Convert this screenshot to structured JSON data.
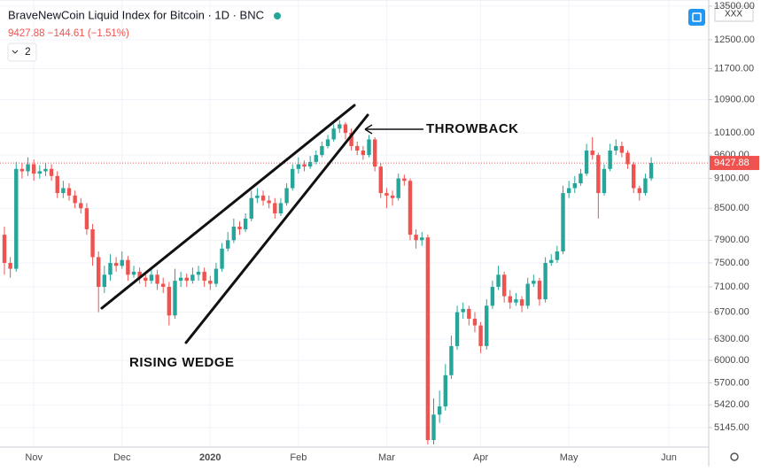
{
  "chart_data": {
    "type": "candlestick",
    "title": "BraveNewCoin Liquid Index for Bitcoin · 1D · BNC",
    "subtitle": "9427.88 −144.61 (−1.51%)",
    "annotations": [
      "THROWBACK",
      "RISING WEDGE"
    ],
    "log_scale": true,
    "grid": true,
    "up_color": "#26a69a",
    "down_color": "#ef5350",
    "ylim": [
      4920,
      13690
    ],
    "yticks": [
      {
        "value": 5145,
        "label": "5145.00"
      },
      {
        "value": 5420,
        "label": "5420.00"
      },
      {
        "value": 5700,
        "label": "5700.00"
      },
      {
        "value": 6000,
        "label": "6000.00"
      },
      {
        "value": 6300,
        "label": "6300.00"
      },
      {
        "value": 6700,
        "label": "6700.00"
      },
      {
        "value": 7100,
        "label": "7100.00"
      },
      {
        "value": 7500,
        "label": "7500.00"
      },
      {
        "value": 7900,
        "label": "7900.00"
      },
      {
        "value": 8500,
        "label": "8500.00"
      },
      {
        "value": 9100,
        "label": "9100.00"
      },
      {
        "value": 9600,
        "label": "9600.00"
      },
      {
        "value": 10100,
        "label": "10100.00"
      },
      {
        "value": 10900,
        "label": "10900.00"
      },
      {
        "value": 11700,
        "label": "11700.00"
      },
      {
        "value": 12500,
        "label": "12500.00"
      },
      {
        "value": 13500,
        "label": "13500.00"
      }
    ],
    "categories": [
      null,
      null,
      null,
      null,
      null,
      "Nov",
      null,
      null,
      null,
      null,
      null,
      null,
      null,
      null,
      null,
      null,
      null,
      null,
      null,
      null,
      "Dec",
      null,
      null,
      null,
      null,
      null,
      null,
      null,
      null,
      null,
      null,
      null,
      null,
      null,
      null,
      "2020",
      null,
      null,
      null,
      null,
      null,
      null,
      null,
      null,
      null,
      null,
      null,
      null,
      null,
      null,
      "Feb",
      null,
      null,
      null,
      null,
      null,
      null,
      null,
      null,
      null,
      null,
      null,
      null,
      null,
      null,
      "Mar",
      null,
      null,
      null,
      null,
      null,
      null,
      null,
      null,
      null,
      null,
      null,
      null,
      null,
      null,
      null,
      "Apr",
      null,
      null,
      null,
      null,
      null,
      null,
      null,
      null,
      null,
      null,
      null,
      null,
      null,
      null,
      "May",
      null,
      null,
      null,
      null,
      null,
      null,
      null,
      null,
      null,
      null,
      null,
      null,
      null,
      null,
      null,
      null,
      "Jun"
    ],
    "open": [
      8000,
      7500,
      7400,
      9300,
      9250,
      9400,
      9200,
      9250,
      9300,
      9150,
      8800,
      8900,
      8750,
      8600,
      8500,
      8100,
      7600,
      7100,
      7300,
      7500,
      7450,
      7550,
      7300,
      7350,
      7250,
      7200,
      7300,
      7150,
      7100,
      6650,
      7200,
      7250,
      7200,
      7300,
      7350,
      7200,
      7150,
      7400,
      7750,
      7900,
      8150,
      8100,
      8300,
      8700,
      8750,
      8650,
      8600,
      8400,
      8600,
      8900,
      9300,
      9400,
      9350,
      9450,
      9600,
      9800,
      9950,
      10200,
      10300,
      10100,
      9800,
      9700,
      9600,
      9950,
      9350,
      8800,
      8750,
      8700,
      9100,
      9050,
      8000,
      7900,
      7950,
      5000,
      5300,
      5400,
      5800,
      6200,
      6700,
      6750,
      6600,
      6500,
      6200,
      6800,
      7100,
      7300,
      6950,
      6850,
      6900,
      6800,
      7150,
      7200,
      6900,
      7500,
      7550,
      7700,
      8800,
      8900,
      9000,
      9200,
      9700,
      9600,
      8800,
      9300,
      9700,
      9800,
      9650,
      9400,
      8900,
      8800,
      9100,
      null,
      null,
      null
    ],
    "high": [
      8150,
      7600,
      9450,
      9420,
      9550,
      9500,
      9380,
      9420,
      9400,
      9250,
      9050,
      9000,
      8850,
      8700,
      8600,
      8200,
      7700,
      7450,
      7650,
      7600,
      7700,
      7620,
      7450,
      7420,
      7350,
      7400,
      7380,
      7250,
      7180,
      7400,
      7350,
      7320,
      7420,
      7450,
      7420,
      7280,
      7500,
      7850,
      8050,
      8300,
      8250,
      8400,
      8850,
      8900,
      8850,
      8750,
      8700,
      8700,
      9000,
      9400,
      9550,
      9480,
      9580,
      9700,
      9900,
      10050,
      10300,
      10400,
      10350,
      10200,
      9900,
      9800,
      10050,
      10000,
      9420,
      8900,
      8850,
      9200,
      9180,
      9100,
      8100,
      8050,
      8000,
      5500,
      5600,
      5950,
      6350,
      6800,
      6850,
      6800,
      6700,
      6550,
      6900,
      7200,
      7450,
      7350,
      7050,
      7000,
      6950,
      7250,
      7300,
      7250,
      7600,
      7650,
      7800,
      8950,
      9050,
      9150,
      9300,
      9850,
      10000,
      9650,
      9400,
      9850,
      9950,
      9900,
      9700,
      9450,
      8950,
      9200,
      9550,
      null,
      null,
      null
    ],
    "low": [
      7300,
      7250,
      7350,
      9100,
      9150,
      9050,
      9100,
      9150,
      9050,
      8700,
      8700,
      8650,
      8500,
      8400,
      8000,
      7450,
      6700,
      7000,
      7200,
      7350,
      7400,
      7200,
      7250,
      7150,
      7100,
      7150,
      7050,
      7000,
      6500,
      6600,
      7100,
      7100,
      7150,
      7200,
      7100,
      7050,
      7100,
      7350,
      7700,
      7850,
      8000,
      8050,
      8250,
      8600,
      8550,
      8500,
      8300,
      8350,
      8550,
      8850,
      9200,
      9250,
      9300,
      9400,
      9550,
      9750,
      9900,
      10100,
      9950,
      9700,
      9600,
      9500,
      9550,
      9250,
      8700,
      8500,
      8550,
      8650,
      8950,
      7900,
      7750,
      7800,
      4950,
      4950,
      5200,
      5350,
      5750,
      6150,
      6600,
      6500,
      6400,
      6100,
      6150,
      6750,
      7050,
      6850,
      6750,
      6800,
      6700,
      6750,
      7100,
      6800,
      6850,
      7450,
      7500,
      7650,
      8700,
      8800,
      8950,
      9150,
      9500,
      8300,
      8750,
      9250,
      9600,
      9550,
      9300,
      8800,
      8650,
      8750,
      9050,
      null,
      null,
      null
    ],
    "close": [
      7500,
      7400,
      9300,
      9250,
      9400,
      9200,
      9250,
      9300,
      9150,
      8800,
      8900,
      8750,
      8600,
      8500,
      8100,
      7600,
      7100,
      7300,
      7500,
      7450,
      7550,
      7300,
      7350,
      7250,
      7200,
      7300,
      7150,
      7100,
      6650,
      7200,
      7250,
      7200,
      7300,
      7350,
      7200,
      7150,
      7400,
      7750,
      7900,
      8150,
      8100,
      8300,
      8700,
      8750,
      8650,
      8600,
      8400,
      8600,
      8900,
      9300,
      9400,
      9350,
      9450,
      9600,
      9800,
      9950,
      10200,
      10300,
      10100,
      9800,
      9700,
      9600,
      9950,
      9350,
      8800,
      8750,
      8700,
      9100,
      9050,
      8000,
      7900,
      7950,
      5000,
      5300,
      5400,
      5800,
      6200,
      6700,
      6750,
      6600,
      6500,
      6200,
      6800,
      7100,
      7300,
      6950,
      6850,
      6900,
      6800,
      7150,
      7200,
      6900,
      7500,
      7550,
      7700,
      8800,
      8900,
      9000,
      9200,
      9700,
      9600,
      8800,
      9300,
      9700,
      9800,
      9650,
      9400,
      8900,
      8800,
      9100,
      9427.88,
      null,
      null,
      null
    ]
  },
  "ui": {
    "indicators": "2",
    "symbol": "XXX"
  }
}
